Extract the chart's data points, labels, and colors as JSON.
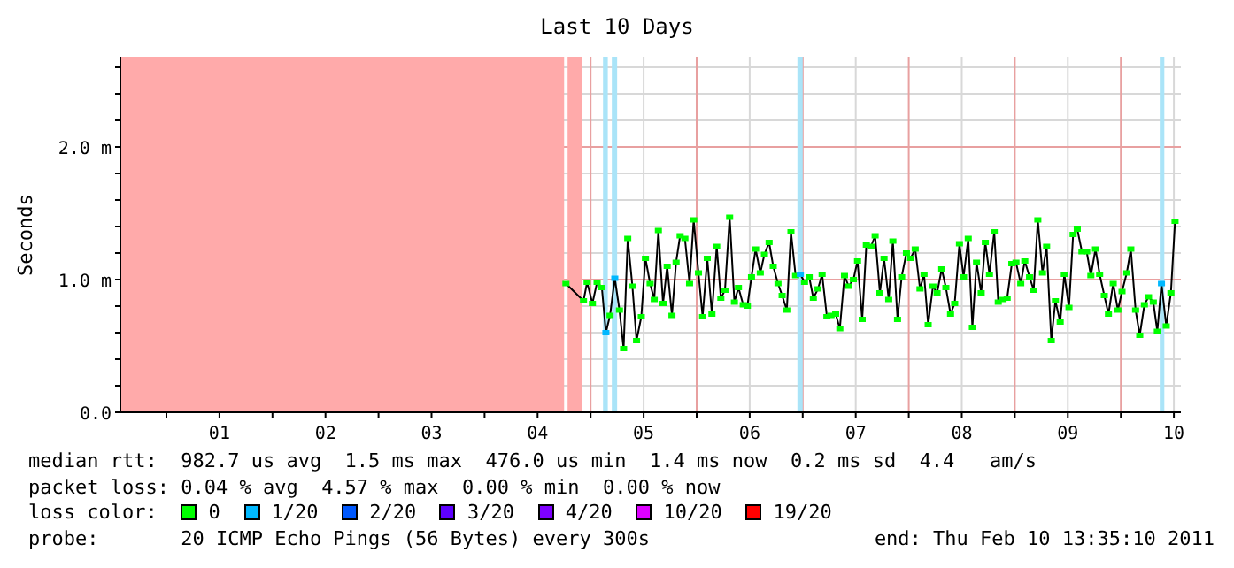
{
  "chart_data": {
    "type": "line",
    "title": "Last 10 Days",
    "ylabel": "Seconds",
    "xlim": [
      0.566,
      10.566
    ],
    "xticks": [
      {
        "value": 1,
        "label": null
      },
      {
        "value": 1.5,
        "label": "01"
      },
      {
        "value": 2,
        "label": null
      },
      {
        "value": 2.5,
        "label": "02"
      },
      {
        "value": 3,
        "label": null
      },
      {
        "value": 3.5,
        "label": "03"
      },
      {
        "value": 4,
        "label": null
      },
      {
        "value": 4.5,
        "label": "04"
      },
      {
        "value": 5,
        "label": null
      },
      {
        "value": 5.5,
        "label": "05"
      },
      {
        "value": 6,
        "label": null
      },
      {
        "value": 6.5,
        "label": "06"
      },
      {
        "value": 7,
        "label": null
      },
      {
        "value": 7.5,
        "label": "07"
      },
      {
        "value": 8,
        "label": null
      },
      {
        "value": 8.5,
        "label": "08"
      },
      {
        "value": 9,
        "label": null
      },
      {
        "value": 9.5,
        "label": "09"
      },
      {
        "value": 10,
        "label": null
      },
      {
        "value": 10.5,
        "label": "10"
      }
    ],
    "ylim": [
      0,
      2.68
    ],
    "yticks": [
      {
        "value": 0,
        "label": "0.0"
      },
      {
        "value": 0.2,
        "label": null
      },
      {
        "value": 0.4,
        "label": null
      },
      {
        "value": 0.6,
        "label": null
      },
      {
        "value": 0.8,
        "label": null
      },
      {
        "value": 1,
        "label": "1.0 m"
      },
      {
        "value": 1.2,
        "label": null
      },
      {
        "value": 1.4,
        "label": null
      },
      {
        "value": 1.6,
        "label": null
      },
      {
        "value": 1.8,
        "label": null
      },
      {
        "value": 2,
        "label": "2.0 m"
      },
      {
        "value": 2.2,
        "label": null
      },
      {
        "value": 2.4,
        "label": null
      },
      {
        "value": 2.6,
        "label": null
      }
    ],
    "grid": true,
    "marker": "square",
    "line_style": "solid",
    "series": [
      {
        "color": "#000000",
        "x": [
          4.767,
          4.933,
          4.967,
          5.017,
          5.061,
          5.106,
          5.144,
          5.183,
          5.228,
          5.272,
          5.311,
          5.35,
          5.394,
          5.433,
          5.478,
          5.517,
          5.561,
          5.6,
          5.639,
          5.683,
          5.722,
          5.767,
          5.806,
          5.844,
          5.889,
          5.933,
          5.972,
          6.017,
          6.056,
          6.1,
          6.144,
          6.189,
          6.228,
          6.267,
          6.311,
          6.356,
          6.394,
          6.439,
          6.478,
          6.517,
          6.556,
          6.6,
          6.639,
          6.683,
          6.722,
          6.767,
          6.806,
          6.85,
          6.889,
          6.933,
          6.978,
          7.017,
          7.061,
          7.1,
          7.144,
          7.183,
          7.228,
          7.267,
          7.311,
          7.35,
          7.394,
          7.433,
          7.478,
          7.517,
          7.561,
          7.6,
          7.644,
          7.683,
          7.728,
          7.767,
          7.811,
          7.85,
          7.894,
          7.933,
          7.978,
          8.017,
          8.061,
          8.106,
          8.144,
          8.183,
          8.228,
          8.267,
          8.311,
          8.35,
          8.394,
          8.433,
          8.478,
          8.517,
          8.561,
          8.6,
          8.639,
          8.683,
          8.722,
          8.761,
          8.806,
          8.844,
          8.889,
          8.928,
          8.972,
          9.011,
          9.056,
          9.094,
          9.139,
          9.178,
          9.217,
          9.261,
          9.3,
          9.344,
          9.383,
          9.428,
          9.467,
          9.511,
          9.55,
          9.589,
          9.633,
          9.678,
          9.717,
          9.761,
          9.8,
          9.844,
          9.883,
          9.928,
          9.972,
          10.011,
          10.056,
          10.094,
          10.139,
          10.178,
          10.222,
          10.261,
          10.306,
          10.344,
          10.383,
          10.428,
          10.472,
          10.511
        ],
        "values": [
          0.97,
          0.84,
          0.98,
          0.82,
          0.98,
          0.94,
          0.6,
          0.73,
          1.01,
          0.77,
          0.48,
          1.31,
          0.95,
          0.54,
          0.72,
          1.16,
          0.97,
          0.85,
          1.37,
          0.82,
          1.1,
          0.73,
          1.13,
          1.33,
          1.31,
          0.97,
          1.45,
          1.05,
          0.72,
          1.16,
          0.74,
          1.25,
          0.86,
          0.92,
          1.47,
          0.83,
          0.94,
          0.81,
          0.8,
          1.02,
          1.23,
          1.05,
          1.19,
          1.28,
          1.1,
          0.97,
          0.88,
          0.77,
          1.36,
          1.03,
          1.04,
          0.98,
          1.02,
          0.86,
          0.93,
          1.04,
          0.72,
          0.73,
          0.74,
          0.63,
          1.03,
          0.95,
          1.0,
          1.14,
          0.7,
          1.26,
          1.25,
          1.33,
          0.9,
          1.16,
          0.85,
          1.29,
          0.7,
          1.02,
          1.2,
          1.16,
          1.23,
          0.93,
          1.04,
          0.66,
          0.95,
          0.9,
          1.08,
          0.94,
          0.74,
          0.82,
          1.27,
          1.02,
          1.31,
          0.64,
          1.13,
          0.9,
          1.28,
          1.04,
          1.36,
          0.83,
          0.85,
          0.86,
          1.12,
          1.13,
          0.97,
          1.14,
          1.02,
          0.92,
          1.45,
          1.05,
          1.25,
          0.54,
          0.84,
          0.68,
          1.04,
          0.79,
          1.34,
          1.38,
          1.21,
          1.21,
          1.03,
          1.23,
          1.04,
          0.88,
          0.74,
          0.97,
          0.77,
          0.91,
          1.05,
          1.23,
          0.77,
          0.58,
          0.81,
          0.87,
          0.83,
          0.61,
          0.97,
          0.65,
          0.9,
          1.44
        ],
        "colors": [
          "#00ff00",
          "#00ff00",
          "#00ff00",
          "#00ff00",
          "#00ff00",
          "#00ff00",
          "#00b8ff",
          "#00ff00",
          "#00b8ff",
          "#00ff00",
          "#00ff00",
          "#00ff00",
          "#00ff00",
          "#00ff00",
          "#00ff00",
          "#00ff00",
          "#00ff00",
          "#00ff00",
          "#00ff00",
          "#00ff00",
          "#00ff00",
          "#00ff00",
          "#00ff00",
          "#00ff00",
          "#00ff00",
          "#00ff00",
          "#00ff00",
          "#00ff00",
          "#00ff00",
          "#00ff00",
          "#00ff00",
          "#00ff00",
          "#00ff00",
          "#00ff00",
          "#00ff00",
          "#00ff00",
          "#00ff00",
          "#00ff00",
          "#00ff00",
          "#00ff00",
          "#00ff00",
          "#00ff00",
          "#00ff00",
          "#00ff00",
          "#00ff00",
          "#00ff00",
          "#00ff00",
          "#00ff00",
          "#00ff00",
          "#00ff00",
          "#00b8ff",
          "#00ff00",
          "#00ff00",
          "#00ff00",
          "#00ff00",
          "#00ff00",
          "#00ff00",
          "#00ff00",
          "#00ff00",
          "#00ff00",
          "#00ff00",
          "#00ff00",
          "#00ff00",
          "#00ff00",
          "#00ff00",
          "#00ff00",
          "#00ff00",
          "#00ff00",
          "#00ff00",
          "#00ff00",
          "#00ff00",
          "#00ff00",
          "#00ff00",
          "#00ff00",
          "#00ff00",
          "#00ff00",
          "#00ff00",
          "#00ff00",
          "#00ff00",
          "#00ff00",
          "#00ff00",
          "#00ff00",
          "#00ff00",
          "#00ff00",
          "#00ff00",
          "#00ff00",
          "#00ff00",
          "#00ff00",
          "#00ff00",
          "#00ff00",
          "#00ff00",
          "#00ff00",
          "#00ff00",
          "#00ff00",
          "#00ff00",
          "#00ff00",
          "#00ff00",
          "#00ff00",
          "#00ff00",
          "#00ff00",
          "#00ff00",
          "#00ff00",
          "#00ff00",
          "#00ff00",
          "#00ff00",
          "#00ff00",
          "#00ff00",
          "#00ff00",
          "#00ff00",
          "#00ff00",
          "#00ff00",
          "#00ff00",
          "#00ff00",
          "#00ff00",
          "#00ff00",
          "#00ff00",
          "#00ff00",
          "#00ff00",
          "#00ff00",
          "#00ff00",
          "#00ff00",
          "#00ff00",
          "#00ff00",
          "#00ff00",
          "#00ff00",
          "#00ff00",
          "#00ff00",
          "#00ff00",
          "#00ff00",
          "#00ff00",
          "#00ff00",
          "#00ff00",
          "#00b8ff",
          "#00ff00",
          "#00ff00",
          "#00ff00"
        ]
      }
    ],
    "bands": [
      {
        "axis": "x",
        "from": 0.566,
        "to": 4.75,
        "color": "#ffaaaa"
      },
      {
        "axis": "x",
        "from": 4.783,
        "to": 4.917,
        "color": "#ffaaaa"
      },
      {
        "axis": "x",
        "from": 5.117,
        "to": 5.162,
        "color": "#aae4f8"
      },
      {
        "axis": "x",
        "from": 5.2,
        "to": 5.25,
        "color": "#aae4f8"
      },
      {
        "axis": "x",
        "from": 6.95,
        "to": 7.0,
        "color": "#aae4f8"
      },
      {
        "axis": "x",
        "from": 10.367,
        "to": 10.41,
        "color": "#aae4f8"
      }
    ],
    "annotations": [
      "median rtt:  982.7 us avg  1.5 ms max  476.0 us min  1.4 ms now  0.2 ms sd  4.4   am/s",
      "packet loss: 0.04 % avg  4.57 % max  0.00 % min  0.00 % now",
      "loss color:",
      "0",
      "1/20",
      "2/20",
      "3/20",
      "4/20",
      "10/20",
      "19/20",
      "probe:       20 ICMP Echo Pings (56 Bytes) every 300s",
      "end: Thu Feb 10 13:35:10 2011"
    ]
  }
}
